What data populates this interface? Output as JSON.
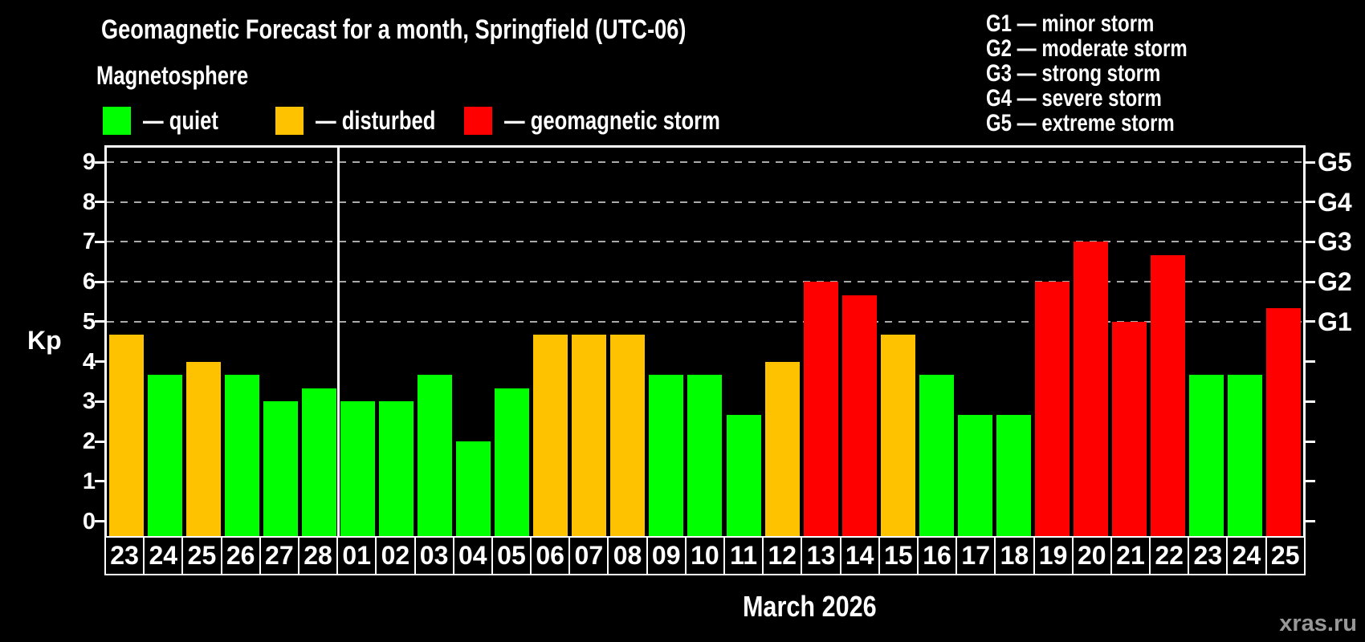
{
  "header": {
    "title": "Geomagnetic Forecast for a month, Springfield (UTC-06)",
    "subtitle": "Magnetosphere"
  },
  "status_legend": [
    {
      "key": "quiet",
      "label": "— quiet"
    },
    {
      "key": "disturbed",
      "label": "— disturbed"
    },
    {
      "key": "storm",
      "label": "— geomagnetic storm"
    }
  ],
  "g_legend": [
    "G1 — minor storm",
    "G2 — moderate storm",
    "G3 — strong storm",
    "G4 — severe storm",
    "G5 — extreme storm"
  ],
  "colors": {
    "quiet": "#00ff00",
    "disturbed": "#ffc200",
    "storm": "#ff0000",
    "axis": "#ffffff",
    "grid": "#aaaaaa",
    "watermark": "#979797"
  },
  "watermark": "xras.ru",
  "chart_data": {
    "type": "bar",
    "title": "Geomagnetic Forecast for a month, Springfield (UTC-06)",
    "ylabel": "Kp",
    "xlabel": "March 2026",
    "ylim": [
      0,
      9
    ],
    "yticks": [
      0,
      1,
      2,
      3,
      4,
      5,
      6,
      7,
      8,
      9
    ],
    "grid_levels": [
      5,
      6,
      7,
      8,
      9
    ],
    "grid_style": "dashed",
    "legend_position": "top",
    "right_axis": [
      {
        "kp": 5,
        "label": "G1"
      },
      {
        "kp": 6,
        "label": "G2"
      },
      {
        "kp": 7,
        "label": "G3"
      },
      {
        "kp": 8,
        "label": "G4"
      },
      {
        "kp": 9,
        "label": "G5"
      }
    ],
    "month_separator_after_index": 5,
    "days": [
      {
        "day": "23",
        "kp": 4.67,
        "status": "disturbed"
      },
      {
        "day": "24",
        "kp": 3.67,
        "status": "quiet"
      },
      {
        "day": "25",
        "kp": 4.0,
        "status": "disturbed"
      },
      {
        "day": "26",
        "kp": 3.67,
        "status": "quiet"
      },
      {
        "day": "27",
        "kp": 3.0,
        "status": "quiet"
      },
      {
        "day": "28",
        "kp": 3.33,
        "status": "quiet"
      },
      {
        "day": "01",
        "kp": 3.0,
        "status": "quiet"
      },
      {
        "day": "02",
        "kp": 3.0,
        "status": "quiet"
      },
      {
        "day": "03",
        "kp": 3.67,
        "status": "quiet"
      },
      {
        "day": "04",
        "kp": 2.0,
        "status": "quiet"
      },
      {
        "day": "05",
        "kp": 3.33,
        "status": "quiet"
      },
      {
        "day": "06",
        "kp": 4.67,
        "status": "disturbed"
      },
      {
        "day": "07",
        "kp": 4.67,
        "status": "disturbed"
      },
      {
        "day": "08",
        "kp": 4.67,
        "status": "disturbed"
      },
      {
        "day": "09",
        "kp": 3.67,
        "status": "quiet"
      },
      {
        "day": "10",
        "kp": 3.67,
        "status": "quiet"
      },
      {
        "day": "11",
        "kp": 2.67,
        "status": "quiet"
      },
      {
        "day": "12",
        "kp": 4.0,
        "status": "disturbed"
      },
      {
        "day": "13",
        "kp": 6.0,
        "status": "storm"
      },
      {
        "day": "14",
        "kp": 5.67,
        "status": "storm"
      },
      {
        "day": "15",
        "kp": 4.67,
        "status": "disturbed"
      },
      {
        "day": "16",
        "kp": 3.67,
        "status": "quiet"
      },
      {
        "day": "17",
        "kp": 2.67,
        "status": "quiet"
      },
      {
        "day": "18",
        "kp": 2.67,
        "status": "quiet"
      },
      {
        "day": "19",
        "kp": 6.0,
        "status": "storm"
      },
      {
        "day": "20",
        "kp": 7.0,
        "status": "storm"
      },
      {
        "day": "21",
        "kp": 5.0,
        "status": "storm"
      },
      {
        "day": "22",
        "kp": 6.67,
        "status": "storm"
      },
      {
        "day": "23",
        "kp": 3.67,
        "status": "quiet"
      },
      {
        "day": "24",
        "kp": 3.67,
        "status": "quiet"
      },
      {
        "day": "25",
        "kp": 5.33,
        "status": "storm"
      }
    ]
  }
}
